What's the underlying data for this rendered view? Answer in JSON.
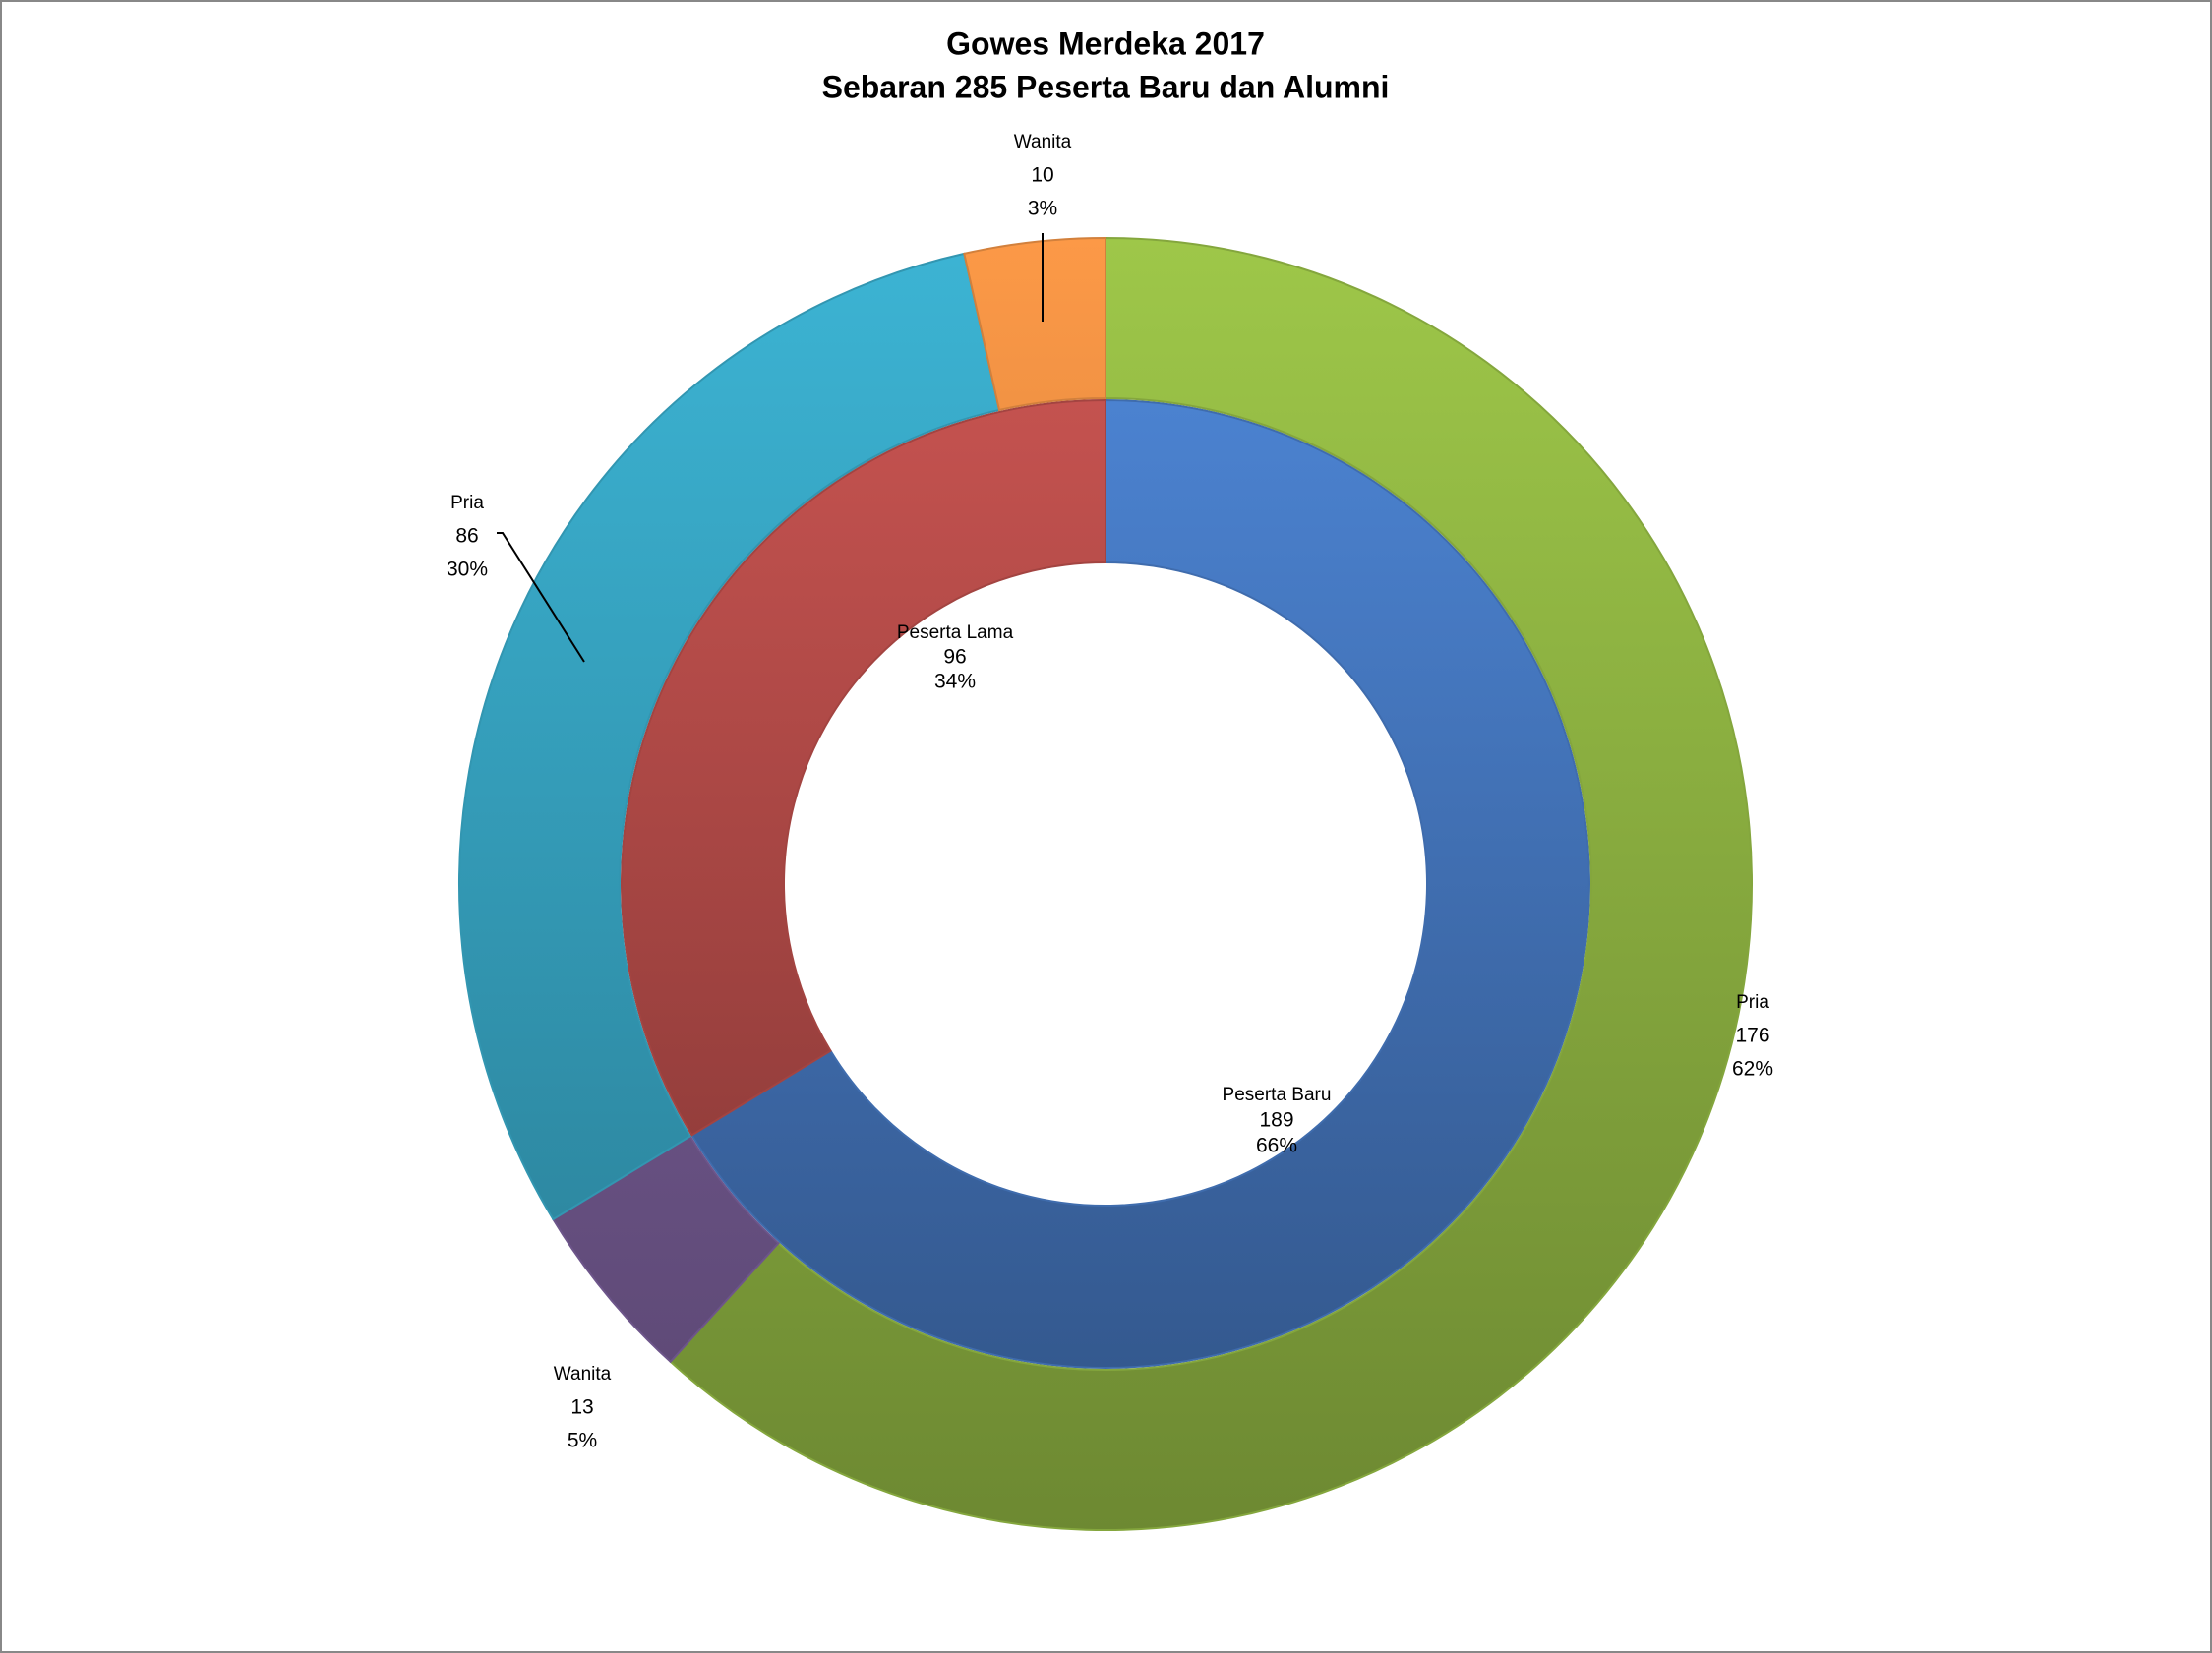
{
  "chart_data": {
    "type": "nested-donut",
    "title": "Gowes Merdeka 2017",
    "subtitle": "Sebaran 285 Peserta Baru dan Alumni",
    "rings": [
      {
        "categories": [
          "Peserta Baru",
          "Peserta Lama"
        ],
        "values": [
          189,
          96
        ],
        "percent_labels": [
          "66%",
          "34%"
        ],
        "colors": [
          "#4a7fcc",
          "#c0504d"
        ]
      },
      {
        "categories": [
          "Pria",
          "Wanita",
          "Pria",
          "Wanita"
        ],
        "values": [
          176,
          13,
          86,
          10
        ],
        "percent_labels": [
          "62%",
          "5%",
          "30%",
          "3%"
        ],
        "colors": [
          "#9bc348",
          "#8064a2",
          "#3bb0d0",
          "#f79646"
        ]
      }
    ]
  }
}
